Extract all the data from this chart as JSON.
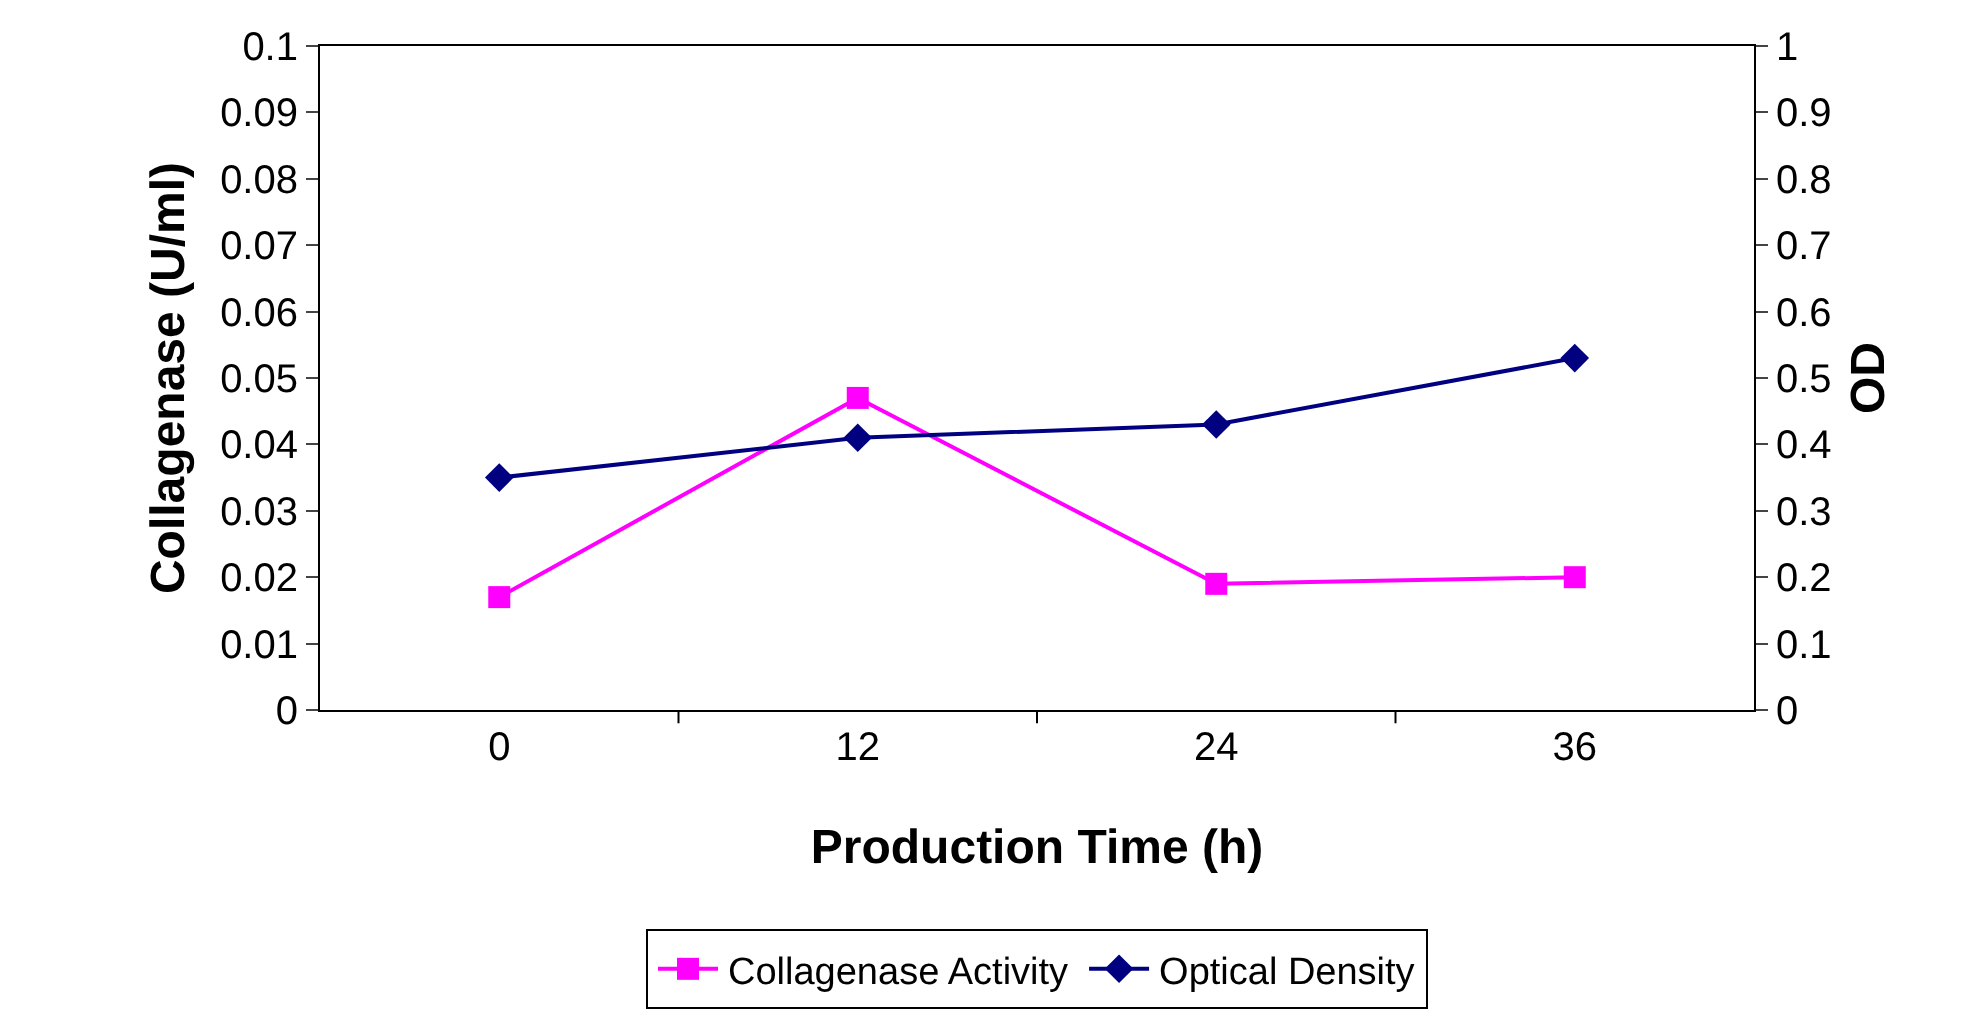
{
  "chart_data": {
    "type": "line",
    "xlabel": "Production Time (h)",
    "ylabel": "Collagenase (U/ml)",
    "y2label": "OD",
    "categories": [
      "0",
      "12",
      "24",
      "36"
    ],
    "series": [
      {
        "name": "Collagenase Activity",
        "color": "#ff00ff",
        "marker": "square",
        "values": [
          0.017,
          0.047,
          0.019,
          0.02
        ]
      },
      {
        "name": "Optical Density",
        "color": "#000080",
        "marker": "diamond",
        "axis": "y2",
        "values": [
          0.35,
          0.41,
          0.43,
          0.53
        ]
      }
    ],
    "ylim": [
      0,
      0.1
    ],
    "yticks": [
      0,
      0.01,
      0.02,
      0.03,
      0.04,
      0.05,
      0.06,
      0.07,
      0.08,
      0.09,
      0.1
    ],
    "y2lim": [
      0,
      1
    ],
    "y2ticks": [
      0,
      0.1,
      0.2,
      0.3,
      0.4,
      0.5,
      0.6,
      0.7,
      0.8,
      0.9,
      1
    ],
    "grid": false,
    "legend": "bottom",
    "line_style": "solid"
  }
}
